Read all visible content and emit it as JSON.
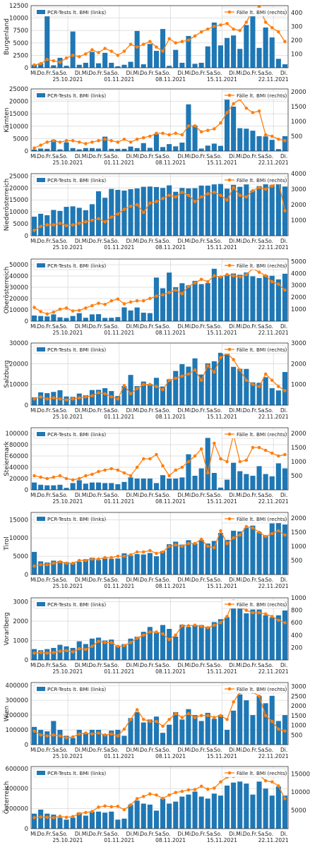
{
  "legend": {
    "left": "PCR-Tests lt. BMI (links)",
    "right": "Fälle lt. BMI (rechts)"
  },
  "colors": {
    "bars": "#1f77b4",
    "line": "#ff7f0e",
    "grid": "#d9d9d9"
  },
  "x_axis": {
    "weekday_labels": [
      "Mi.",
      "Do.",
      "Fr.",
      "Sa.",
      "So.",
      "Di.",
      "Mi.",
      "Do.",
      "Fr.",
      "Sa.",
      "So.",
      "Di.",
      "Mi.",
      "Do.",
      "Fr.",
      "Sa.",
      "So.",
      "Di.",
      "Mi.",
      "Do.",
      "Fr.",
      "Sa.",
      "So.",
      "Di.",
      "Mi.",
      "Do.",
      "Fr.",
      "Sa.",
      "So.",
      "Di."
    ],
    "date_labels": [
      "25.10.2021",
      "01.11.2021",
      "08.11.2021",
      "15.11.2021",
      "22.11.2021"
    ]
  },
  "chart_data": [
    {
      "type": "bar+line",
      "region": "Burgenland",
      "ylabel": "Burgenland",
      "ylim_left": [
        0,
        12500
      ],
      "yticks_left": [
        0,
        2500,
        5000,
        7500,
        10000,
        12500
      ],
      "ylim_right": [
        0,
        450
      ],
      "yticks_right": [
        100,
        200,
        300,
        400
      ],
      "tests": [
        600,
        900,
        11300,
        500,
        2000,
        400,
        7300,
        600,
        1000,
        3200,
        900,
        3000,
        1000,
        300,
        600,
        1200,
        7400,
        700,
        4800,
        3400,
        7800,
        400,
        3600,
        1000,
        6400,
        800,
        1000,
        4300,
        9100,
        4500,
        6000,
        6500,
        3800,
        8600,
        10800,
        4000,
        8100,
        6100,
        1800,
        700
      ],
      "cases": [
        20,
        30,
        60,
        50,
        40,
        70,
        90,
        80,
        100,
        130,
        110,
        140,
        120,
        90,
        120,
        170,
        150,
        170,
        190,
        150,
        120,
        210,
        180,
        190,
        200,
        230,
        260,
        280,
        300,
        310,
        320,
        280,
        270,
        330,
        420,
        440,
        330,
        290,
        260,
        190
      ]
    },
    {
      "type": "bar+line",
      "region": "Kärnten",
      "ylabel": "Kärnten",
      "ylim_left": [
        0,
        25000
      ],
      "yticks_left": [
        0,
        5000,
        10000,
        15000,
        20000,
        25000
      ],
      "ylim_right": [
        0,
        2100
      ],
      "yticks_right": [
        500,
        1000,
        1500,
        2000
      ],
      "tests": [
        600,
        1000,
        900,
        4500,
        700,
        3500,
        1200,
        700,
        1200,
        1200,
        1000,
        5800,
        900,
        900,
        900,
        1800,
        1200,
        3200,
        1300,
        6800,
        1600,
        2800,
        1900,
        3400,
        18800,
        10300,
        1000,
        2200,
        3000,
        2100,
        21000,
        17900,
        9200,
        9000,
        8200,
        6000,
        5900,
        4500,
        800,
        6000
      ],
      "cases": [
        100,
        200,
        300,
        350,
        300,
        350,
        350,
        300,
        250,
        300,
        350,
        400,
        350,
        300,
        400,
        300,
        400,
        450,
        500,
        600,
        600,
        550,
        600,
        550,
        850,
        850,
        650,
        700,
        750,
        950,
        1300,
        1600,
        1750,
        1450,
        1300,
        1350,
        550,
        500,
        400,
        350
      ]
    },
    {
      "type": "bar+line",
      "region": "Niederösterreich",
      "ylabel": "Niederösterreich",
      "ylim_left": [
        0,
        26000
      ],
      "yticks_left": [
        0,
        5000,
        10000,
        15000,
        20000,
        25000
      ],
      "ylim_right": [
        0,
        4000
      ],
      "yticks_right": [
        1000,
        2000,
        3000,
        4000
      ],
      "tests": [
        8000,
        9200,
        8600,
        10800,
        10400,
        12100,
        12300,
        11700,
        10700,
        13200,
        18600,
        15900,
        19600,
        19200,
        18900,
        19500,
        19800,
        20500,
        20600,
        20400,
        20000,
        21100,
        18400,
        20000,
        19800,
        19900,
        21000,
        21000,
        21500,
        21700,
        19700,
        21300,
        20500,
        21500,
        18900,
        20800,
        21900,
        21200,
        22000,
        20600
      ],
      "cases": [
        350,
        600,
        700,
        700,
        800,
        650,
        700,
        800,
        900,
        1000,
        1100,
        900,
        1200,
        1400,
        1700,
        1900,
        2000,
        1500,
        2100,
        2200,
        2400,
        2600,
        2500,
        2800,
        2600,
        2200,
        2500,
        2700,
        2800,
        2600,
        2300,
        3100,
        2600,
        2500,
        2900,
        3100,
        3000,
        3200,
        3500,
        1600
      ]
    },
    {
      "type": "bar+line",
      "region": "Oberösterreich",
      "ylabel": "Oberösterreich",
      "ylim_left": [
        0,
        55000
      ],
      "yticks_left": [
        0,
        10000,
        20000,
        30000,
        40000,
        50000
      ],
      "ylim_right": [
        0,
        5200
      ],
      "yticks_right": [
        1000,
        2000,
        3000,
        4000,
        5000
      ],
      "tests": [
        5000,
        4600,
        4200,
        6000,
        3400,
        2800,
        4600,
        7100,
        3000,
        6000,
        6200,
        2900,
        3000,
        3600,
        12200,
        9400,
        12100,
        7500,
        7100,
        38600,
        29100,
        43000,
        30100,
        33600,
        31700,
        35700,
        32800,
        33700,
        46400,
        39500,
        40900,
        42200,
        41100,
        43100,
        39700,
        38200,
        40500,
        40200,
        37000,
        42000
      ],
      "cases": [
        1150,
        800,
        600,
        750,
        1000,
        1100,
        850,
        900,
        1100,
        1300,
        1500,
        1400,
        1700,
        1850,
        1450,
        1600,
        1700,
        1700,
        1900,
        2100,
        2200,
        2400,
        2600,
        2300,
        2900,
        3200,
        3500,
        3300,
        3800,
        3700,
        3900,
        3800,
        3700,
        3900,
        4400,
        4100,
        3800,
        3300,
        3100,
        2600
      ]
    },
    {
      "type": "bar+line",
      "region": "Salzburg",
      "ylabel": "Salzburg",
      "ylim_left": [
        0,
        30000
      ],
      "yticks_left": [
        0,
        10000,
        20000,
        30000
      ],
      "ylim_right": [
        0,
        3000
      ],
      "yticks_right": [
        1000,
        2000,
        3000
      ],
      "tests": [
        3800,
        6200,
        5800,
        6400,
        7200,
        4200,
        4000,
        5600,
        4800,
        7300,
        7400,
        8200,
        6800,
        4400,
        9200,
        14600,
        9200,
        11400,
        10200,
        13200,
        9000,
        12500,
        16500,
        19800,
        18600,
        22600,
        14800,
        20200,
        21200,
        25300,
        24800,
        18500,
        17600,
        17500,
        11000,
        10800,
        13500,
        8200,
        7100,
        16000
      ],
      "cases": [
        300,
        400,
        300,
        350,
        300,
        250,
        300,
        350,
        400,
        450,
        600,
        550,
        400,
        300,
        950,
        550,
        800,
        1000,
        1000,
        900,
        750,
        1200,
        1300,
        1400,
        1500,
        1700,
        1200,
        1900,
        1600,
        2300,
        2500,
        2200,
        1700,
        1200,
        1000,
        900,
        1500,
        1200,
        900,
        700
      ]
    },
    {
      "type": "bar+line",
      "region": "Steiermark",
      "ylabel": "Steiermark",
      "ylim_left": [
        0,
        110000
      ],
      "yticks_left": [
        0,
        20000,
        40000,
        60000,
        80000,
        100000
      ],
      "ylim_right": [
        0,
        2200
      ],
      "yticks_right": [
        500,
        1000,
        1500,
        2000
      ],
      "tests": [
        13000,
        9000,
        8000,
        8000,
        9000,
        3500,
        12000,
        17000,
        11000,
        13000,
        13000,
        12000,
        12000,
        10000,
        14000,
        22000,
        20000,
        20000,
        20000,
        12000,
        26000,
        20000,
        20000,
        22000,
        63000,
        25000,
        38000,
        92000,
        30000,
        4000,
        18000,
        48000,
        33000,
        28000,
        25000,
        42000,
        28000,
        24000,
        47000,
        38000
      ],
      "cases": [
        500,
        450,
        400,
        450,
        500,
        400,
        350,
        400,
        500,
        550,
        650,
        700,
        750,
        700,
        600,
        500,
        800,
        1100,
        1100,
        1250,
        850,
        500,
        700,
        800,
        1000,
        1200,
        1450,
        600,
        1650,
        1100,
        1000,
        1950,
        1000,
        1050,
        1500,
        1500,
        1400,
        1300,
        1200,
        1250
      ]
    },
    {
      "type": "bar+line",
      "region": "Tirol",
      "ylabel": "Tirol",
      "ylim_left": [
        0,
        17000
      ],
      "yticks_left": [
        0,
        5000,
        10000,
        15000
      ],
      "ylim_right": [
        0,
        2200
      ],
      "yticks_right": [
        500,
        1000,
        1500,
        2000
      ],
      "tests": [
        6200,
        3600,
        3300,
        3800,
        3700,
        3400,
        3200,
        3500,
        4200,
        4600,
        4000,
        4400,
        4300,
        4400,
        5800,
        5200,
        5600,
        5500,
        5900,
        5000,
        6400,
        8300,
        9000,
        8200,
        9400,
        8500,
        9500,
        8500,
        9200,
        11400,
        9500,
        12000,
        11800,
        12800,
        13400,
        11600,
        10700,
        14000,
        14500,
        13700
      ],
      "cases": [
        300,
        350,
        350,
        400,
        450,
        400,
        400,
        500,
        500,
        550,
        550,
        600,
        600,
        650,
        650,
        700,
        800,
        800,
        850,
        750,
        800,
        1000,
        1050,
        1000,
        1100,
        1100,
        1250,
        1000,
        950,
        1550,
        1100,
        1300,
        1400,
        1700,
        1650,
        1500,
        1350,
        1450,
        1550,
        1400
      ]
    },
    {
      "type": "bar+line",
      "region": "Vorarlberg",
      "ylabel": "Vorarlberg",
      "ylim_left": [
        0,
        3200
      ],
      "yticks_left": [
        0,
        1000,
        2000,
        3000
      ],
      "ylim_right": [
        0,
        1000
      ],
      "yticks_right": [
        200,
        400,
        600,
        800,
        1000
      ],
      "tests": [
        560,
        500,
        560,
        620,
        780,
        700,
        620,
        960,
        820,
        1100,
        1150,
        1000,
        1050,
        720,
        820,
        1100,
        1200,
        1450,
        1700,
        1400,
        1800,
        1600,
        1200,
        1820,
        1700,
        1800,
        1800,
        1700,
        1950,
        2100,
        2200,
        2950,
        2850,
        2400,
        2600,
        2600,
        2300,
        2200,
        2300,
        2550
      ],
      "cases": [
        110,
        120,
        110,
        120,
        140,
        150,
        130,
        180,
        170,
        220,
        300,
        280,
        280,
        220,
        230,
        280,
        350,
        400,
        450,
        450,
        420,
        330,
        400,
        550,
        550,
        560,
        540,
        520,
        560,
        600,
        700,
        950,
        850,
        800,
        760,
        760,
        740,
        700,
        640,
        600
      ]
    },
    {
      "type": "bar+line",
      "region": "Wien",
      "ylabel": "Wien",
      "ylim_left": [
        0,
        420000
      ],
      "yticks_left": [
        0,
        100000,
        200000,
        300000,
        400000
      ],
      "ylim_right": [
        0,
        3200
      ],
      "yticks_right": [
        500,
        1000,
        1500,
        2000,
        2500,
        3000
      ],
      "tests": [
        120000,
        100000,
        90000,
        160000,
        100000,
        60000,
        45000,
        100000,
        75000,
        100000,
        100000,
        70000,
        95000,
        100000,
        60000,
        180000,
        220000,
        150000,
        170000,
        190000,
        80000,
        135000,
        220000,
        170000,
        240000,
        200000,
        160000,
        215000,
        175000,
        200000,
        100000,
        230000,
        340000,
        300000,
        200000,
        330000,
        280000,
        330000,
        160000,
        200000
      ],
      "cases": [
        700,
        500,
        450,
        500,
        450,
        350,
        400,
        550,
        600,
        550,
        600,
        500,
        550,
        450,
        800,
        1300,
        1800,
        1300,
        1200,
        1200,
        950,
        1300,
        1600,
        1400,
        1600,
        1400,
        1500,
        1500,
        1400,
        1500,
        1300,
        2200,
        2700,
        2900,
        2700,
        2500,
        1500,
        1200,
        800,
        700
      ]
    },
    {
      "type": "bar+line",
      "region": "Österreich",
      "ylabel": "Österreich",
      "ylim_left": [
        0,
        620000
      ],
      "yticks_left": [
        0,
        200000,
        400000,
        600000
      ],
      "ylim_right": [
        0,
        17000
      ],
      "yticks_right": [
        5000,
        10000,
        15000
      ],
      "tests": [
        150000,
        190000,
        150000,
        140000,
        110000,
        90000,
        110000,
        160000,
        130000,
        170000,
        170000,
        160000,
        170000,
        90000,
        100000,
        240000,
        280000,
        250000,
        240000,
        180000,
        300000,
        250000,
        270000,
        320000,
        340000,
        370000,
        320000,
        300000,
        350000,
        330000,
        430000,
        460000,
        470000,
        450000,
        340000,
        470000,
        400000,
        330000,
        420000,
        330000
      ],
      "cases": [
        3000,
        3200,
        3100,
        3000,
        3400,
        3100,
        3300,
        4100,
        4400,
        4700,
        5900,
        6200,
        6000,
        6100,
        5200,
        6500,
        8200,
        8800,
        9500,
        9200,
        8300,
        9200,
        9900,
        10200,
        10600,
        10700,
        11600,
        10800,
        11100,
        12800,
        14100,
        14300,
        14900,
        15700,
        15100,
        14700,
        13100,
        12800,
        11700,
        8200
      ]
    }
  ]
}
